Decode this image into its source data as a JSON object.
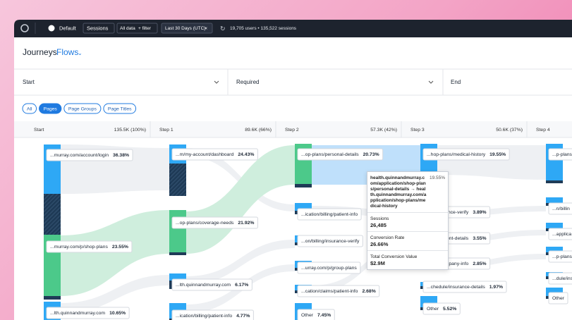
{
  "toolbar": {
    "workspace": "Default",
    "mode": "Sessions",
    "data": "All data",
    "filter": "+ filter",
    "range": "Last 30 Days (UTC)",
    "summary": "19,705 users • 135,522 sessions"
  },
  "header": {
    "title": "Journeys",
    "view": "Flows"
  },
  "filters": [
    "Start",
    "Required",
    "End"
  ],
  "tabs": [
    "All",
    "Pages",
    "Page Groups",
    "Page Titles"
  ],
  "steps": [
    {
      "label": "Start",
      "value": "135.5K (100%)"
    },
    {
      "label": "Step 1",
      "value": "89.6K (66%)"
    },
    {
      "label": "Step 2",
      "value": "57.3K (42%)"
    },
    {
      "label": "Step 3",
      "value": "50.6K (37%)"
    },
    {
      "label": "Step 4"
    }
  ],
  "columns": [
    [
      {
        "label": "...murray.com/account/login",
        "pct": "36.38%"
      },
      {
        "label": "...murray.com/p/shop-plans",
        "pct": "23.55%"
      },
      {
        "label": "...lth.quinnandmurray.com",
        "pct": "10.65%"
      }
    ],
    [
      {
        "label": "...m/my-account/dashboard",
        "pct": "24.43%"
      },
      {
        "label": "...op-plans/coverage-needs",
        "pct": "21.92%"
      },
      {
        "label": "...lth.quinnandmurray.com",
        "pct": "6.17%"
      },
      {
        "label": "...ication/billing/patient-info",
        "pct": "4.77%"
      }
    ],
    [
      {
        "label": "...op-plans/personal-details",
        "pct": "20.73%"
      },
      {
        "label": "...ication/billing/patient-info"
      },
      {
        "label": "...on/billing/insurance-verify"
      },
      {
        "label": "...urray.com/p/group-plans"
      },
      {
        "label": "...cation/claims/patient-info",
        "pct": "2.68%"
      },
      {
        "label": "Other",
        "pct": "7.45%"
      }
    ],
    [
      {
        "label": "...hop-plans/medical-history",
        "pct": "19.55%"
      },
      {
        "label": "...g/insurance-verify",
        "pct": "3.89%"
      },
      {
        "label": "...g/payment-details",
        "pct": "3.55%"
      },
      {
        "label": "...ans/company-info",
        "pct": "2.85%"
      },
      {
        "label": "...chedule/insurance-details",
        "pct": "1.97%"
      },
      {
        "label": "Other",
        "pct": "5.52%"
      }
    ],
    [
      {
        "label": "...p-plans/"
      },
      {
        "label": "...n/billin"
      },
      {
        "label": "...applica"
      },
      {
        "label": "...p-plans"
      },
      {
        "label": "...dule/ins"
      },
      {
        "label": "Other"
      }
    ]
  ],
  "tooltip": {
    "path": "health.quinnandmurray.com/application/shop-plans/personal-details → health.quinnandmurray.com/application/shop-plans/medical-history",
    "pct": "19.55%",
    "metrics": [
      {
        "label": "Sessions",
        "value": "26,485"
      },
      {
        "label": "Conversion Rate",
        "value": "26.66%"
      },
      {
        "label": "Total Conversion Value",
        "value": "$2.9M"
      }
    ]
  }
}
